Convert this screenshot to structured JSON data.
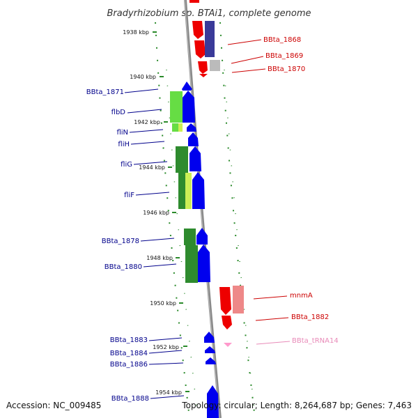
{
  "title": "Bradyrhizobium sp. BTAi1, complete genome",
  "footer": {
    "accession": "Accession: NC_009485",
    "topology": "Topology: circular; Length: 8,264,687 bp; Genes: 7,463"
  },
  "scale_labels": [
    "1938 kbp",
    "1940 kbp",
    "1942 kbp",
    "1944 kbp",
    "1946 kbp",
    "1948 kbp",
    "1950 kbp",
    "1952 kbp",
    "1954 kbp"
  ],
  "colors": {
    "backbone": "#8a8a8a",
    "tick": "#2a8a2a",
    "forward_gene": "#0000ee",
    "reverse_gene": "#ee0000",
    "label_forward": "#00008b",
    "label_reverse": "#cc0000",
    "label_trna": "#e88ab8",
    "cog_green": "#2e8b2e",
    "cog_lightgreen": "#66dd44",
    "cog_yellowgreen": "#ccee55",
    "cog_navy": "#3a3a99",
    "cog_pink": "#ee8888",
    "cog_grey": "#bbbbbb",
    "trna": "#ff99cc"
  },
  "genes_right": [
    {
      "label": "BBta_1868",
      "color": "#cc0000"
    },
    {
      "label": "BBta_1869",
      "color": "#cc0000"
    },
    {
      "label": "BBta_1870",
      "color": "#cc0000"
    },
    {
      "label": "mnmA",
      "color": "#cc0000"
    },
    {
      "label": "BBta_1882",
      "color": "#cc0000"
    },
    {
      "label": "BBta_tRNA14",
      "color": "#e88ab8"
    }
  ],
  "genes_left": [
    {
      "label": "BBta_1871"
    },
    {
      "label": "flbD"
    },
    {
      "label": "fliN"
    },
    {
      "label": "fliH"
    },
    {
      "label": "fliG"
    },
    {
      "label": "fliF"
    },
    {
      "label": "BBta_1878"
    },
    {
      "label": "BBta_1880"
    },
    {
      "label": "BBta_1883"
    },
    {
      "label": "BBta_1884"
    },
    {
      "label": "BBta_1886"
    },
    {
      "label": "BBta_1888"
    }
  ]
}
